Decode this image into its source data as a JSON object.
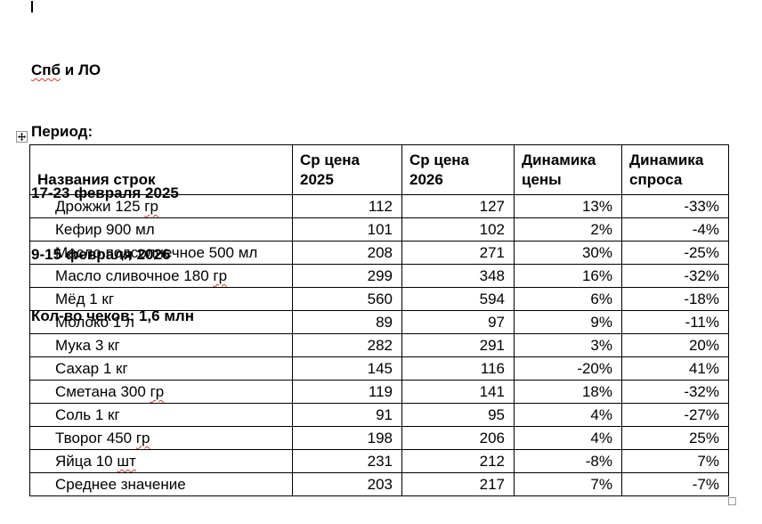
{
  "colors": {
    "text": "#000000",
    "table_border": "#000000",
    "spellcheck_squiggle": "#cf3b2f",
    "handle_border": "#8f8f8f"
  },
  "icons": {
    "move_icon": "four-direction-move-arrows",
    "resize_icon": "small-square-resize-handle",
    "text_cursor": "vertical-caret-bar"
  },
  "header_block": {
    "region_misspelled": "Спб",
    "region_rest": " и ЛО",
    "period_label": "Период:",
    "period_range_1": "17-23 февраля 2025",
    "period_range_2": "9-15 февраля 2026",
    "receipts_count": "Кол-во чеков: 1,6 млн"
  },
  "table": {
    "columns": [
      "Названия строк",
      "Ср цена 2025",
      "Ср цена 2026",
      "Динамика цены",
      "Динамика спроса"
    ],
    "rows": [
      {
        "name": "Дрожжи 125 ",
        "unit_flagged": "гр",
        "p2025": "112",
        "p2026": "127",
        "price_dyn": "13%",
        "demand_dyn": "-33%"
      },
      {
        "name": "Кефир 900 мл",
        "unit_flagged": "",
        "p2025": "101",
        "p2026": "102",
        "price_dyn": "2%",
        "demand_dyn": "-4%"
      },
      {
        "name": "Масло подсолнечное 500 мл",
        "unit_flagged": "",
        "p2025": "208",
        "p2026": "271",
        "price_dyn": "30%",
        "demand_dyn": "-25%"
      },
      {
        "name": "Масло сливочное 180 ",
        "unit_flagged": "гр",
        "p2025": "299",
        "p2026": "348",
        "price_dyn": "16%",
        "demand_dyn": "-32%"
      },
      {
        "name": "Мёд 1 кг",
        "unit_flagged": "",
        "p2025": "560",
        "p2026": "594",
        "price_dyn": "6%",
        "demand_dyn": "-18%"
      },
      {
        "name": "Молоко 1 л",
        "unit_flagged": "",
        "p2025": "89",
        "p2026": "97",
        "price_dyn": "9%",
        "demand_dyn": "-11%"
      },
      {
        "name": "Мука 3 кг",
        "unit_flagged": "",
        "p2025": "282",
        "p2026": "291",
        "price_dyn": "3%",
        "demand_dyn": "20%"
      },
      {
        "name": "Сахар 1 кг",
        "unit_flagged": "",
        "p2025": "145",
        "p2026": "116",
        "price_dyn": "-20%",
        "demand_dyn": "41%"
      },
      {
        "name": "Сметана 300 ",
        "unit_flagged": "гр",
        "p2025": "119",
        "p2026": "141",
        "price_dyn": "18%",
        "demand_dyn": "-32%"
      },
      {
        "name": "Соль 1 кг",
        "unit_flagged": "",
        "p2025": "91",
        "p2026": "95",
        "price_dyn": "4%",
        "demand_dyn": "-27%"
      },
      {
        "name": "Творог 450 ",
        "unit_flagged": "гр",
        "p2025": "198",
        "p2026": "206",
        "price_dyn": "4%",
        "demand_dyn": "25%"
      },
      {
        "name": "Яйца 10 ",
        "unit_flagged": "шт",
        "p2025": "231",
        "p2026": "212",
        "price_dyn": "-8%",
        "demand_dyn": "7%"
      },
      {
        "name": "Среднее значение",
        "unit_flagged": "",
        "p2025": "203",
        "p2026": "217",
        "price_dyn": "7%",
        "demand_dyn": "-7%"
      }
    ]
  }
}
